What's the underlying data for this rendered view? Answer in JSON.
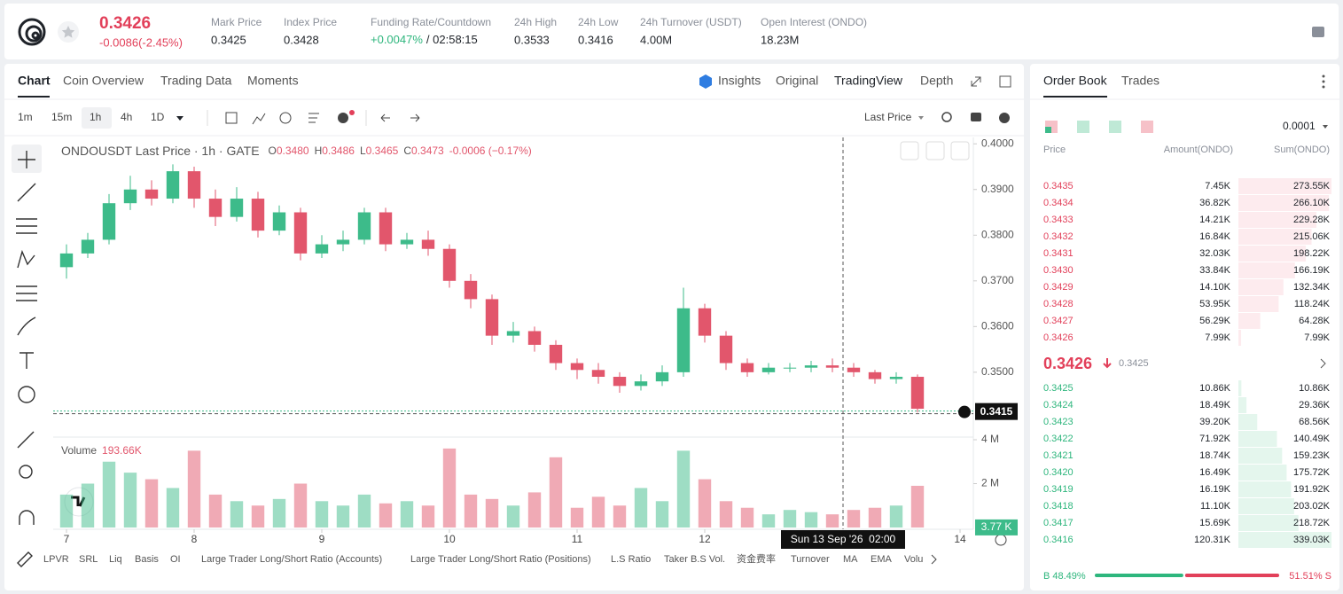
{
  "header": {
    "price": "0.3426",
    "change": "-0.0086(-2.45%)",
    "stats": [
      {
        "label": "Mark Price",
        "value": "0.3425"
      },
      {
        "label": "Index Price",
        "value": "0.3428"
      },
      {
        "label": "Funding Rate/Countdown",
        "value": "+0.0047%",
        "extra": "/ 02:58:15"
      },
      {
        "label": "24h High",
        "value": "0.3533"
      },
      {
        "label": "24h Low",
        "value": "0.3416"
      },
      {
        "label": "24h Turnover (USDT)",
        "value": "4.00M"
      },
      {
        "label": "Open Interest (ONDO)",
        "value": "18.23M"
      }
    ]
  },
  "tabs": [
    "Chart",
    "Coin Overview",
    "Trading Data",
    "Moments"
  ],
  "views": [
    "Insights",
    "Original",
    "TradingView",
    "Depth"
  ],
  "intervals": [
    "1m",
    "15m",
    "1h",
    "4h",
    "1D"
  ],
  "price_type": "Last Price",
  "chart_data": {
    "type": "candlestick",
    "title": "ONDOUSDT Last Price · 1h · GATE",
    "legend": {
      "o_label": "O",
      "o": "0.3480",
      "h_label": "H",
      "h": "0.3486",
      "l_label": "L",
      "l": "0.3465",
      "c_label": "C",
      "c": "0.3473",
      "change": "-0.0006 (−0.17%)"
    },
    "up_color": "#3dbb8a",
    "down_color": "#e2566c",
    "x": [
      0,
      4,
      8,
      12,
      16,
      20,
      24,
      28,
      32,
      36,
      40,
      44,
      48,
      52,
      56,
      60,
      64,
      68,
      72,
      76,
      80,
      84,
      88,
      92,
      96,
      100,
      104,
      108,
      112,
      116,
      120,
      124,
      128,
      132,
      136,
      140,
      144,
      148,
      152,
      156,
      160
    ],
    "open": [
      0.373,
      0.376,
      0.379,
      0.387,
      0.39,
      0.388,
      0.394,
      0.388,
      0.384,
      0.388,
      0.381,
      0.385,
      0.376,
      0.378,
      0.379,
      0.385,
      0.378,
      0.379,
      0.377,
      0.37,
      0.366,
      0.358,
      0.359,
      0.356,
      0.352,
      0.3505,
      0.349,
      0.347,
      0.348,
      0.35,
      0.364,
      0.358,
      0.352,
      0.35,
      0.351,
      0.351,
      0.3515,
      0.351,
      0.35,
      0.3485,
      0.349
    ],
    "high": [
      0.378,
      0.3805,
      0.389,
      0.393,
      0.392,
      0.3955,
      0.395,
      0.39,
      0.3905,
      0.3895,
      0.3865,
      0.386,
      0.38,
      0.381,
      0.386,
      0.386,
      0.3805,
      0.381,
      0.378,
      0.3715,
      0.367,
      0.361,
      0.36,
      0.357,
      0.353,
      0.352,
      0.35,
      0.3495,
      0.3515,
      0.3685,
      0.365,
      0.359,
      0.353,
      0.352,
      0.352,
      0.3525,
      0.353,
      0.352,
      0.3505,
      0.35,
      0.3495
    ],
    "low": [
      0.3705,
      0.375,
      0.378,
      0.3855,
      0.3865,
      0.387,
      0.386,
      0.382,
      0.383,
      0.3795,
      0.38,
      0.3745,
      0.375,
      0.3765,
      0.378,
      0.3765,
      0.377,
      0.3755,
      0.3685,
      0.364,
      0.356,
      0.3565,
      0.3545,
      0.3505,
      0.3485,
      0.3475,
      0.3455,
      0.346,
      0.347,
      0.349,
      0.3565,
      0.3505,
      0.349,
      0.3495,
      0.35,
      0.35,
      0.35,
      0.349,
      0.3475,
      0.3475,
      0.3412
    ],
    "close": [
      0.376,
      0.379,
      0.387,
      0.39,
      0.388,
      0.394,
      0.388,
      0.384,
      0.388,
      0.381,
      0.385,
      0.376,
      0.378,
      0.379,
      0.385,
      0.378,
      0.379,
      0.377,
      0.37,
      0.366,
      0.358,
      0.359,
      0.356,
      0.352,
      0.3505,
      0.349,
      0.347,
      0.348,
      0.35,
      0.364,
      0.358,
      0.352,
      0.35,
      0.351,
      0.351,
      0.3515,
      0.351,
      0.35,
      0.3485,
      0.349,
      0.342
    ],
    "xlim": [
      -2.5,
      170.5
    ],
    "xticks": [
      {
        "value": 0,
        "label": "7"
      },
      {
        "value": 24,
        "label": "8"
      },
      {
        "value": 48,
        "label": "9"
      },
      {
        "value": 72,
        "label": "10"
      },
      {
        "value": 96,
        "label": "11"
      },
      {
        "value": 120,
        "label": "12"
      },
      {
        "value": 168,
        "label": "14"
      }
    ],
    "ylim": [
      0.336,
      0.4014
    ],
    "yticks": [
      {
        "value": 0.35,
        "label": "0.3500"
      },
      {
        "value": 0.36,
        "label": "0.3600"
      },
      {
        "value": 0.37,
        "label": "0.3700"
      },
      {
        "value": 0.38,
        "label": "0.3800"
      },
      {
        "value": 0.39,
        "label": "0.3900"
      },
      {
        "value": 0.4,
        "label": "0.4000"
      }
    ],
    "last_price": 0.3415,
    "crosshair": {
      "value": 146,
      "label": "Sun 13 Sep '26  02:00"
    },
    "volume": {
      "title": "Volume",
      "value_label": "193.66K",
      "values": [
        1500000,
        2000000,
        3000000,
        2500000,
        2200000,
        1800000,
        3500000,
        1500000,
        1200000,
        1000000,
        1300000,
        2000000,
        1200000,
        1000000,
        1500000,
        1100000,
        1200000,
        1000000,
        3600000,
        1500000,
        1300000,
        1000000,
        1600000,
        3200000,
        900000,
        1400000,
        1000000,
        1800000,
        1200000,
        3500000,
        2200000,
        1200000,
        900000,
        600000,
        800000,
        700000,
        600000,
        800000,
        900000,
        1000000,
        1900000
      ],
      "ylim": [
        0,
        4040000
      ],
      "yticks": [
        {
          "value": 2000000,
          "label": "2 M"
        },
        {
          "value": 4000000,
          "label": "4 M"
        }
      ],
      "last": {
        "value": 3770,
        "label": "3.77 K"
      }
    }
  },
  "indicators": [
    "LPVR",
    "SRL",
    "Liq",
    "Basis",
    "OI",
    "Large Trader Long/Short Ratio (Accounts)",
    "Large Trader Long/Short Ratio (Positions)",
    "L.S Ratio",
    "Taker B.S Vol.",
    "资金费率",
    "Turnover",
    "MA",
    "EMA",
    "Volu"
  ],
  "order_book": {
    "tabs": [
      "Order Book",
      "Trades"
    ],
    "precision": "0.0001",
    "headers": [
      "Price",
      "Amount(ONDO)",
      "Sum(ONDO)"
    ],
    "asks": [
      {
        "price": "0.3435",
        "amount": "7.45K",
        "sum": {
          "value": 273550,
          "label": "273.55K"
        }
      },
      {
        "price": "0.3434",
        "amount": "36.82K",
        "sum": {
          "value": 266100,
          "label": "266.10K"
        }
      },
      {
        "price": "0.3433",
        "amount": "14.21K",
        "sum": {
          "value": 229280,
          "label": "229.28K"
        }
      },
      {
        "price": "0.3432",
        "amount": "16.84K",
        "sum": {
          "value": 215060,
          "label": "215.06K"
        }
      },
      {
        "price": "0.3431",
        "amount": "32.03K",
        "sum": {
          "value": 198220,
          "label": "198.22K"
        }
      },
      {
        "price": "0.3430",
        "amount": "33.84K",
        "sum": {
          "value": 166190,
          "label": "166.19K"
        }
      },
      {
        "price": "0.3429",
        "amount": "14.10K",
        "sum": {
          "value": 132340,
          "label": "132.34K"
        }
      },
      {
        "price": "0.3428",
        "amount": "53.95K",
        "sum": {
          "value": 118240,
          "label": "118.24K"
        }
      },
      {
        "price": "0.3427",
        "amount": "56.29K",
        "sum": {
          "value": 64280,
          "label": "64.28K"
        }
      },
      {
        "price": "0.3426",
        "amount": "7.99K",
        "sum": {
          "value": 7990,
          "label": "7.99K"
        }
      }
    ],
    "mid_price": "0.3426",
    "mark_price": "0.3425",
    "bids": [
      {
        "price": "0.3425",
        "amount": "10.86K",
        "sum": {
          "value": 10860,
          "label": "10.86K"
        }
      },
      {
        "price": "0.3424",
        "amount": "18.49K",
        "sum": {
          "value": 29360,
          "label": "29.36K"
        }
      },
      {
        "price": "0.3423",
        "amount": "39.20K",
        "sum": {
          "value": 68560,
          "label": "68.56K"
        }
      },
      {
        "price": "0.3422",
        "amount": "71.92K",
        "sum": {
          "value": 140490,
          "label": "140.49K"
        }
      },
      {
        "price": "0.3421",
        "amount": "18.74K",
        "sum": {
          "value": 159230,
          "label": "159.23K"
        }
      },
      {
        "price": "0.3420",
        "amount": "16.49K",
        "sum": {
          "value": 175720,
          "label": "175.72K"
        }
      },
      {
        "price": "0.3419",
        "amount": "16.19K",
        "sum": {
          "value": 191920,
          "label": "191.92K"
        }
      },
      {
        "price": "0.3418",
        "amount": "11.10K",
        "sum": {
          "value": 203020,
          "label": "203.02K"
        }
      },
      {
        "price": "0.3417",
        "amount": "15.69K",
        "sum": {
          "value": 218720,
          "label": "218.72K"
        }
      },
      {
        "price": "0.3416",
        "amount": "120.31K",
        "sum": {
          "value": 339030,
          "label": "339.03K"
        }
      }
    ],
    "ratio": {
      "buy": {
        "value": 48.49,
        "label": "B 48.49%"
      },
      "sell": {
        "value": 51.51,
        "label": "51.51% S"
      }
    }
  }
}
